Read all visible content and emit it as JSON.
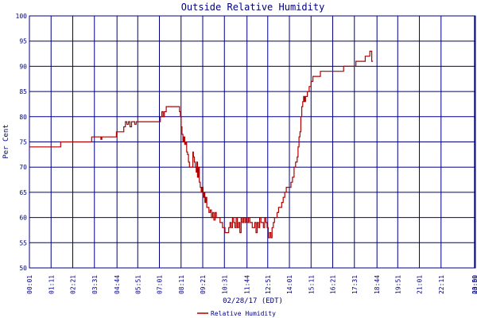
{
  "chart_data": {
    "type": "line",
    "title": "Outside Relative Humidity",
    "xlabel": "02/28/17 (EDT)",
    "ylabel": "Per Cent",
    "ylim": [
      50,
      100
    ],
    "yticks": [
      50,
      55,
      60,
      65,
      70,
      75,
      80,
      85,
      90,
      95,
      100
    ],
    "xlim": [
      0,
      1441
    ],
    "grid": true,
    "xtick_labels": [
      {
        "t": 0,
        "label": "00:01"
      },
      {
        "t": 70,
        "label": "01:11"
      },
      {
        "t": 140,
        "label": "02:21"
      },
      {
        "t": 210,
        "label": "03:31"
      },
      {
        "t": 283,
        "label": "04:44"
      },
      {
        "t": 350,
        "label": "05:51"
      },
      {
        "t": 420,
        "label": "07:01"
      },
      {
        "t": 490,
        "label": "08:11"
      },
      {
        "t": 560,
        "label": "09:21"
      },
      {
        "t": 630,
        "label": "10:31"
      },
      {
        "t": 703,
        "label": "11:44"
      },
      {
        "t": 770,
        "label": "12:51"
      },
      {
        "t": 840,
        "label": "14:01"
      },
      {
        "t": 910,
        "label": "15:11"
      },
      {
        "t": 980,
        "label": "16:21"
      },
      {
        "t": 1050,
        "label": "17:31"
      },
      {
        "t": 1123,
        "label": "18:44"
      },
      {
        "t": 1190,
        "label": "19:51"
      },
      {
        "t": 1260,
        "label": "21:01"
      },
      {
        "t": 1330,
        "label": "22:11"
      },
      {
        "t": 1438,
        "label": "23:59"
      },
      {
        "t": 1440,
        "label": "00:00"
      }
    ],
    "legend": {
      "position": "bottom-center"
    },
    "series": [
      {
        "name": "Relative Humidity",
        "color": "#b00000",
        "points": [
          [
            0,
            74
          ],
          [
            100,
            74
          ],
          [
            101,
            75
          ],
          [
            200,
            75
          ],
          [
            201,
            76
          ],
          [
            230,
            76
          ],
          [
            231,
            75.5
          ],
          [
            234,
            76
          ],
          [
            280,
            76
          ],
          [
            281,
            77
          ],
          [
            300,
            77
          ],
          [
            305,
            78
          ],
          [
            310,
            79
          ],
          [
            315,
            78.5
          ],
          [
            320,
            79
          ],
          [
            325,
            78
          ],
          [
            330,
            79
          ],
          [
            340,
            78.5
          ],
          [
            345,
            79
          ],
          [
            420,
            79
          ],
          [
            423,
            80
          ],
          [
            428,
            81
          ],
          [
            432,
            80
          ],
          [
            436,
            81
          ],
          [
            440,
            81
          ],
          [
            442,
            82
          ],
          [
            480,
            82
          ],
          [
            485,
            81
          ],
          [
            488,
            80
          ],
          [
            490,
            78
          ],
          [
            493,
            76.5
          ],
          [
            496,
            75
          ],
          [
            499,
            76
          ],
          [
            502,
            74.5
          ],
          [
            505,
            75
          ],
          [
            508,
            73
          ],
          [
            511,
            72.5
          ],
          [
            514,
            71
          ],
          [
            517,
            70
          ],
          [
            525,
            70
          ],
          [
            528,
            73
          ],
          [
            530,
            72
          ],
          [
            533,
            71
          ],
          [
            536,
            70
          ],
          [
            539,
            69
          ],
          [
            541,
            71
          ],
          [
            543,
            68
          ],
          [
            546,
            70
          ],
          [
            549,
            67
          ],
          [
            552,
            66
          ],
          [
            555,
            65
          ],
          [
            558,
            66
          ],
          [
            561,
            64
          ],
          [
            564,
            65
          ],
          [
            567,
            63
          ],
          [
            570,
            64
          ],
          [
            573,
            62
          ],
          [
            576,
            62
          ],
          [
            580,
            61
          ],
          [
            584,
            61.5
          ],
          [
            588,
            60
          ],
          [
            592,
            61
          ],
          [
            596,
            59.5
          ],
          [
            600,
            61
          ],
          [
            604,
            60
          ],
          [
            608,
            60
          ],
          [
            612,
            60
          ],
          [
            616,
            59
          ],
          [
            620,
            59
          ],
          [
            624,
            58
          ],
          [
            628,
            58
          ],
          [
            632,
            57
          ],
          [
            640,
            57
          ],
          [
            644,
            58
          ],
          [
            648,
            59
          ],
          [
            652,
            58
          ],
          [
            656,
            60
          ],
          [
            660,
            59
          ],
          [
            664,
            58
          ],
          [
            668,
            60
          ],
          [
            672,
            58
          ],
          [
            676,
            59
          ],
          [
            680,
            57
          ],
          [
            684,
            60
          ],
          [
            688,
            59
          ],
          [
            692,
            60
          ],
          [
            696,
            59
          ],
          [
            700,
            60
          ],
          [
            704,
            59
          ],
          [
            708,
            60
          ],
          [
            712,
            59
          ],
          [
            716,
            59
          ],
          [
            720,
            58
          ],
          [
            724,
            58
          ],
          [
            728,
            59
          ],
          [
            732,
            57
          ],
          [
            736,
            59
          ],
          [
            740,
            58
          ],
          [
            744,
            60
          ],
          [
            748,
            59
          ],
          [
            752,
            59
          ],
          [
            756,
            58
          ],
          [
            760,
            60
          ],
          [
            764,
            59
          ],
          [
            768,
            58
          ],
          [
            772,
            56
          ],
          [
            776,
            57
          ],
          [
            780,
            56
          ],
          [
            784,
            58
          ],
          [
            788,
            59
          ],
          [
            792,
            60
          ],
          [
            796,
            60
          ],
          [
            800,
            61
          ],
          [
            805,
            62
          ],
          [
            810,
            62
          ],
          [
            815,
            63
          ],
          [
            820,
            64
          ],
          [
            825,
            65
          ],
          [
            830,
            66
          ],
          [
            840,
            66
          ],
          [
            845,
            67
          ],
          [
            850,
            68
          ],
          [
            855,
            70
          ],
          [
            860,
            71
          ],
          [
            865,
            72
          ],
          [
            868,
            74
          ],
          [
            871,
            76
          ],
          [
            874,
            77
          ],
          [
            877,
            80
          ],
          [
            880,
            82
          ],
          [
            883,
            83
          ],
          [
            886,
            84
          ],
          [
            889,
            83
          ],
          [
            892,
            84
          ],
          [
            895,
            84
          ],
          [
            898,
            85
          ],
          [
            901,
            85
          ],
          [
            904,
            86
          ],
          [
            907,
            86
          ],
          [
            910,
            87
          ],
          [
            913,
            87
          ],
          [
            916,
            88
          ],
          [
            920,
            88
          ],
          [
            930,
            88
          ],
          [
            940,
            89
          ],
          [
            1010,
            89
          ],
          [
            1015,
            90
          ],
          [
            1050,
            90
          ],
          [
            1055,
            91
          ],
          [
            1080,
            91
          ],
          [
            1085,
            92
          ],
          [
            1095,
            92
          ],
          [
            1100,
            93
          ],
          [
            1104,
            93
          ],
          [
            1106,
            91
          ],
          [
            1110,
            91
          ]
        ]
      }
    ]
  }
}
